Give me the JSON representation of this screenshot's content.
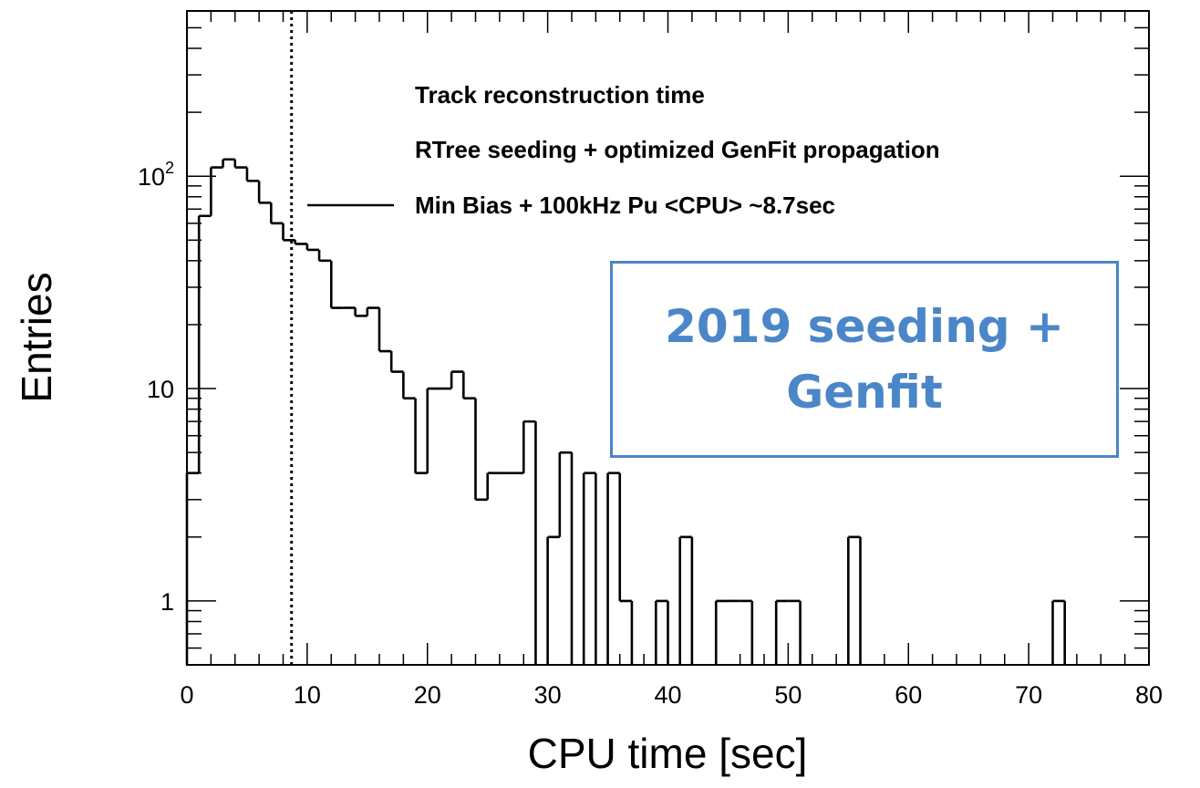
{
  "chart_data": {
    "type": "histogram",
    "xlabel": "CPU time [sec]",
    "ylabel": "Entries",
    "xlim": [
      0,
      80
    ],
    "ylim": [
      0.5,
      600
    ],
    "yscale": "log",
    "x_ticks": [
      0,
      10,
      20,
      30,
      40,
      50,
      60,
      70,
      80
    ],
    "y_ticks": [
      {
        "value": 1,
        "base": "1",
        "exp": ""
      },
      {
        "value": 10,
        "base": "10",
        "exp": ""
      },
      {
        "value": 100,
        "base": "10",
        "exp": "2"
      }
    ],
    "bin_width": 1,
    "series": [
      {
        "name": "Min Bias + 100kHz Pu <CPU> ~8.7sec",
        "bin_edges_start": 0,
        "values": [
          4,
          65,
          110,
          120,
          110,
          95,
          75,
          60,
          50,
          48,
          45,
          40,
          24,
          24,
          22,
          24,
          15,
          12,
          9,
          4,
          10,
          10,
          12,
          9,
          3,
          4,
          4,
          4,
          7,
          0,
          2,
          5,
          0,
          4,
          0,
          4,
          1,
          0,
          0,
          1,
          0,
          2,
          0,
          0,
          1,
          1,
          1,
          0,
          0,
          1,
          1,
          0,
          0,
          0,
          0,
          2,
          0,
          0,
          0,
          0,
          0,
          0,
          0,
          0,
          0,
          0,
          0,
          0,
          0,
          0,
          0,
          0,
          1,
          0,
          0,
          0,
          0,
          0,
          0,
          0
        ]
      }
    ],
    "vertical_line": {
      "x": 8.7,
      "style": "dotted"
    },
    "legend": {
      "location": "top-right",
      "lines": [
        "Track reconstruction time",
        "RTree seeding + optimized GenFit propagation"
      ],
      "entry_label": "Min Bias + 100kHz Pu <CPU> ~8.7sec"
    },
    "annotation": {
      "line1": "2019 seeding +",
      "line2": "Genfit",
      "color": "#4a86c8"
    }
  }
}
